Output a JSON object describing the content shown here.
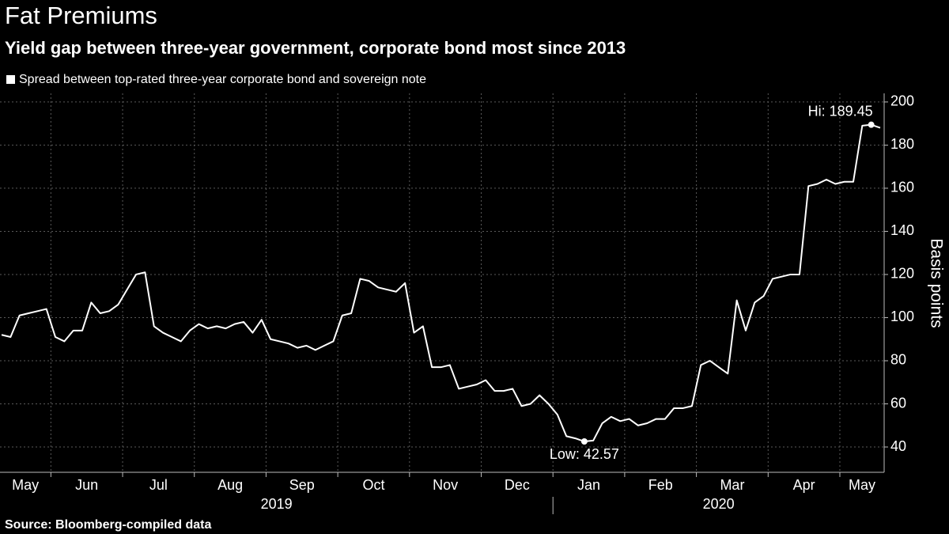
{
  "chart_data": {
    "type": "line",
    "title": "Fat Premiums",
    "subtitle": "Yield gap between three-year government, corporate bond most since 2013",
    "y_label": "Basis points",
    "source": "Source: Bloomberg-compiled data",
    "years": [
      "2019",
      "2020"
    ],
    "annotations": [
      "Hi: 189.45",
      "Low: 42.57"
    ],
    "categories": [
      "May",
      null,
      null,
      null,
      null,
      null,
      "Jun",
      null,
      null,
      null,
      null,
      null,
      null,
      null,
      "Jul",
      null,
      null,
      null,
      null,
      null,
      null,
      null,
      "Aug",
      null,
      null,
      null,
      null,
      null,
      null,
      null,
      "Sep",
      null,
      null,
      null,
      null,
      null,
      null,
      null,
      "Oct",
      null,
      null,
      null,
      null,
      null,
      null,
      null,
      "Nov",
      null,
      null,
      null,
      null,
      null,
      null,
      null,
      "Dec",
      null,
      null,
      null,
      null,
      null,
      null,
      null,
      "Jan",
      null,
      null,
      null,
      null,
      null,
      null,
      null,
      "Feb",
      null,
      null,
      null,
      null,
      null,
      null,
      null,
      "Mar",
      null,
      null,
      null,
      null,
      null,
      null,
      null,
      "Apr",
      null,
      null,
      null,
      null,
      null,
      null,
      null,
      "May",
      null,
      null,
      null,
      null
    ],
    "series": [
      {
        "name": "Spread between top-rated three-year corporate bond and sovereign note",
        "color": "#ffffff",
        "values": [
          92,
          91,
          101,
          102,
          103,
          104,
          91,
          89,
          94,
          94,
          107,
          102,
          103,
          106,
          113,
          120,
          121,
          96,
          93,
          91,
          89,
          94,
          97,
          95,
          96,
          95,
          97,
          98,
          93,
          99,
          90,
          89,
          88,
          86,
          87,
          85,
          87,
          89,
          101,
          102,
          118,
          117,
          114,
          113,
          112,
          116,
          93,
          96,
          77,
          77,
          78,
          67,
          68,
          69,
          71,
          66,
          66,
          67,
          59,
          60,
          64,
          60,
          55,
          45,
          44,
          42.57,
          43,
          51,
          54,
          52,
          53,
          50,
          51,
          53,
          53,
          58,
          58,
          59,
          78,
          80,
          77,
          74,
          108,
          94,
          107,
          110,
          118,
          119,
          120,
          120,
          161,
          162,
          164,
          162,
          163,
          163,
          189,
          189.45,
          188
        ]
      }
    ],
    "ylim": [
      29,
      204
    ],
    "yticks": [
      40,
      60,
      80,
      100,
      120,
      140,
      160,
      180,
      200
    ],
    "grid": true
  }
}
